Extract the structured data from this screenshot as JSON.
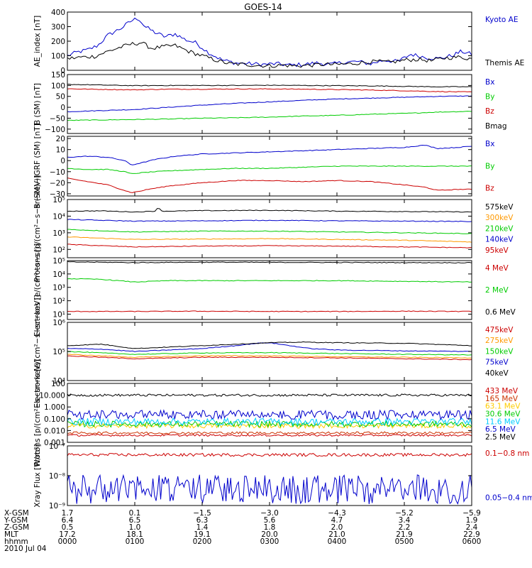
{
  "chart_data": {
    "type": "line",
    "title": "GOES-14",
    "x_range_hours": [
      0,
      6
    ],
    "panels": [
      {
        "name": "ae",
        "ylabel": "AE_index [nT]",
        "scale": "linear",
        "ylim": [
          0,
          400
        ],
        "ticks": [
          0,
          100,
          200,
          300,
          400
        ],
        "tick_labels": [
          "0",
          "100",
          "200",
          "300",
          "400"
        ],
        "series": [
          {
            "name": "Kyoto AE",
            "color": "#0000cc",
            "x": [
              0,
              0.15,
              0.3,
              0.45,
              0.6,
              0.8,
              0.95,
              1.05,
              1.15,
              1.3,
              1.45,
              1.6,
              1.75,
              1.9,
              2.1,
              2.3,
              2.5,
              2.7,
              2.9,
              3.1,
              3.3,
              3.5,
              3.7,
              3.9,
              4.1,
              4.3,
              4.5,
              4.7,
              4.9,
              5.1,
              5.3,
              5.5,
              5.7,
              5.85,
              6.0
            ],
            "y": [
              100,
              125,
              140,
              170,
              240,
              290,
              340,
              360,
              300,
              260,
              230,
              250,
              210,
              190,
              120,
              70,
              50,
              45,
              40,
              45,
              35,
              40,
              50,
              40,
              55,
              60,
              45,
              70,
              60,
              110,
              90,
              80,
              100,
              130,
              110
            ]
          },
          {
            "name": "Themis AE",
            "color": "#000000",
            "x": [
              0,
              0.2,
              0.4,
              0.6,
              0.8,
              0.95,
              1.1,
              1.25,
              1.4,
              1.6,
              1.8,
              2.0,
              2.2,
              2.4,
              2.6,
              2.8,
              3.0,
              3.2,
              3.4,
              3.6,
              3.8,
              4.0,
              4.2,
              4.4,
              4.6,
              4.8,
              5.0,
              5.2,
              5.4,
              5.6,
              5.8,
              6.0
            ],
            "y": [
              80,
              90,
              95,
              130,
              160,
              180,
              190,
              150,
              160,
              170,
              130,
              100,
              70,
              45,
              40,
              35,
              30,
              35,
              30,
              35,
              40,
              40,
              45,
              55,
              60,
              55,
              70,
              75,
              65,
              85,
              90,
              80
            ]
          }
        ]
      },
      {
        "name": "bsm",
        "ylabel": "B (SM) [nT]",
        "scale": "linear",
        "ylim": [
          -120,
          150
        ],
        "ticks": [
          -100,
          -50,
          0,
          50,
          100,
          150
        ],
        "tick_labels": [
          "−100",
          "−50",
          "0",
          "50",
          "100",
          "150"
        ],
        "series": [
          {
            "name": "Bx",
            "color": "#0000cc",
            "x": [
              0,
              0.5,
              1.0,
              1.5,
              2.0,
              2.5,
              3.0,
              3.5,
              4.0,
              4.5,
              5.0,
              5.5,
              6.0
            ],
            "y": [
              -20,
              -15,
              -10,
              0,
              10,
              18,
              25,
              32,
              38,
              42,
              46,
              50,
              52
            ]
          },
          {
            "name": "By",
            "color": "#00cc00",
            "x": [
              0,
              0.5,
              1.0,
              1.5,
              2.0,
              2.5,
              3.0,
              3.5,
              4.0,
              4.5,
              5.0,
              5.5,
              6.0
            ],
            "y": [
              -60,
              -58,
              -56,
              -54,
              -50,
              -48,
              -45,
              -40,
              -37,
              -32,
              -28,
              -22,
              -18
            ]
          },
          {
            "name": "Bz",
            "color": "#cc0000",
            "x": [
              0,
              0.5,
              1.0,
              1.5,
              2.0,
              2.5,
              3.0,
              3.5,
              4.0,
              4.5,
              5.0,
              5.5,
              6.0
            ],
            "y": [
              85,
              82,
              80,
              83,
              83,
              84,
              84,
              83,
              81,
              79,
              76,
              72,
              70
            ]
          },
          {
            "name": "Bmag",
            "color": "#000000",
            "x": [
              0,
              0.5,
              1.0,
              1.5,
              2.0,
              2.5,
              3.0,
              3.5,
              4.0,
              4.5,
              5.0,
              5.5,
              6.0
            ],
            "y": [
              105,
              102,
              99,
              100,
              100,
              100,
              101,
              100,
              99,
              98,
              96,
              94,
              94
            ]
          }
        ]
      },
      {
        "name": "bigrf",
        "ylabel": "B (SM)−IGRF (SM) [nT]",
        "scale": "linear",
        "ylim": [
          -32,
          22
        ],
        "ticks": [
          -30,
          -20,
          -10,
          0,
          10,
          20
        ],
        "tick_labels": [
          "−30",
          "−20",
          "−10",
          "0",
          "10",
          "20"
        ],
        "series": [
          {
            "name": "Bx",
            "color": "#0000cc",
            "x": [
              0,
              0.3,
              0.6,
              0.85,
              0.95,
              1.1,
              1.3,
              1.6,
              2.0,
              2.5,
              3.0,
              3.5,
              4.0,
              4.5,
              5.0,
              5.3,
              5.5,
              5.8,
              6.0
            ],
            "y": [
              3,
              4,
              3,
              0,
              -4,
              -2,
              1,
              4,
              6,
              7,
              8,
              9,
              10,
              11,
              12,
              14,
              11,
              12,
              13
            ]
          },
          {
            "name": "By",
            "color": "#00cc00",
            "x": [
              0,
              0.3,
              0.6,
              0.85,
              0.95,
              1.1,
              1.3,
              1.6,
              2.0,
              2.5,
              3.0,
              3.5,
              4.0,
              4.5,
              5.0,
              5.5,
              6.0
            ],
            "y": [
              -7,
              -8,
              -8,
              -10,
              -12,
              -11,
              -10,
              -9,
              -8,
              -7,
              -7,
              -6,
              -5,
              -5,
              -5,
              -5,
              -5
            ]
          },
          {
            "name": "Bz",
            "color": "#cc0000",
            "x": [
              0,
              0.3,
              0.6,
              0.85,
              0.95,
              1.05,
              1.2,
              1.5,
              2.0,
              2.5,
              3.0,
              3.5,
              4.0,
              4.5,
              5.0,
              5.3,
              5.5,
              5.8,
              6.0
            ],
            "y": [
              -16,
              -19,
              -22,
              -27,
              -29,
              -28,
              -26,
              -23,
              -20,
              -18,
              -18,
              -19,
              -18,
              -19,
              -22,
              -24,
              -27,
              -26,
              -26
            ]
          }
        ]
      },
      {
        "name": "protons_kev",
        "ylabel": "Protons [p/(cm²−s−sr−keV)]",
        "scale": "log",
        "ylim": [
          1.5,
          5
        ],
        "ticks": [
          2,
          3,
          4,
          5
        ],
        "tick_labels": [
          "10²",
          "10³",
          "10⁴",
          "10⁵"
        ],
        "series": [
          {
            "name": "575keV",
            "color": "#000000",
            "x": [
              0,
              0.5,
              1.0,
              1.3,
              1.35,
              1.4,
              1.5,
              2.0,
              3.0,
              4.0,
              5.0,
              6.0
            ],
            "y": [
              4.3,
              4.32,
              4.25,
              4.3,
              4.55,
              4.3,
              4.3,
              4.33,
              4.35,
              4.3,
              4.28,
              4.25
            ]
          },
          {
            "name": "300keV",
            "color": "#ff9900",
            "x": [
              0,
              1.0,
              2.0,
              3.0,
              4.0,
              5.0,
              6.0
            ],
            "y": [
              2.75,
              2.6,
              2.62,
              2.65,
              2.6,
              2.55,
              2.45
            ]
          },
          {
            "name": "210keV",
            "color": "#00cc00",
            "x": [
              0,
              1.0,
              2.0,
              3.0,
              4.0,
              5.0,
              6.0
            ],
            "y": [
              3.2,
              3.05,
              3.1,
              3.1,
              3.05,
              3.0,
              2.95
            ]
          },
          {
            "name": "140keV",
            "color": "#0000cc",
            "x": [
              0,
              1.0,
              2.0,
              3.0,
              4.0,
              5.0,
              6.0
            ],
            "y": [
              3.8,
              3.7,
              3.72,
              3.75,
              3.72,
              3.7,
              3.68
            ]
          },
          {
            "name": "95keV",
            "color": "#cc0000",
            "x": [
              0,
              1.0,
              2.0,
              3.0,
              4.0,
              5.0,
              6.0
            ],
            "y": [
              2.3,
              2.15,
              2.2,
              2.22,
              2.2,
              2.15,
              2.1
            ]
          }
        ]
      },
      {
        "name": "electrons_mev",
        "ylabel": "Electrons [e/(cm²−s−sr)]",
        "scale": "log",
        "ylim": [
          0.6,
          5
        ],
        "ticks": [
          1,
          2,
          3,
          4,
          5
        ],
        "tick_labels": [
          "10¹",
          "10²",
          "10³",
          "10⁴",
          "10⁵"
        ],
        "series": [
          {
            "name": "4 MeV",
            "color": "#cc0000",
            "x": [
              0,
              1.0,
              2.0,
              3.0,
              4.0,
              5.0,
              6.0
            ],
            "y": [
              1.2,
              1.2,
              1.22,
              1.2,
              1.2,
              1.22,
              1.2
            ]
          },
          {
            "name": "2 MeV",
            "color": "#00cc00",
            "x": [
              0,
              0.5,
              1.0,
              1.5,
              2.0,
              3.0,
              4.0,
              5.0,
              6.0
            ],
            "y": [
              3.65,
              3.6,
              3.4,
              3.5,
              3.5,
              3.5,
              3.5,
              3.45,
              3.4
            ]
          },
          {
            "name": "0.6 MeV",
            "color": "#000000",
            "x": [
              0,
              1.0,
              2.0,
              3.0,
              4.0,
              5.0,
              6.0
            ],
            "y": [
              4.9,
              4.85,
              4.88,
              4.87,
              4.86,
              4.85,
              4.84
            ]
          }
        ]
      },
      {
        "name": "electrons_kev",
        "ylabel": "Electrons [e/(cm²−s−sr−keV)]",
        "scale": "log",
        "ylim": [
          4,
          6
        ],
        "ticks": [
          4,
          5,
          6
        ],
        "tick_labels": [
          "10⁴",
          "10⁵",
          "10⁶"
        ],
        "series": [
          {
            "name": "475keV",
            "color": "#cc0000",
            "x": [
              0,
              1.0,
              2.0,
              3.0,
              4.0,
              5.0,
              6.0
            ],
            "y": [
              4.85,
              4.75,
              4.8,
              4.8,
              4.78,
              4.75,
              4.72
            ]
          },
          {
            "name": "275keV",
            "color": "#ff9900",
            "x": [
              0,
              1.0,
              2.0,
              3.0,
              4.0,
              5.0,
              6.0
            ],
            "y": [
              4.9,
              4.8,
              4.85,
              4.85,
              4.82,
              4.8,
              4.78
            ]
          },
          {
            "name": "150keV",
            "color": "#00cc00",
            "x": [
              0,
              1.0,
              2.0,
              3.0,
              4.0,
              5.0,
              6.0
            ],
            "y": [
              5.0,
              4.9,
              4.95,
              4.96,
              4.93,
              4.9,
              4.88
            ]
          },
          {
            "name": "75keV",
            "color": "#0000cc",
            "x": [
              0,
              0.5,
              1.0,
              1.5,
              2.0,
              2.5,
              2.8,
              3.0,
              3.3,
              3.6,
              4.0,
              5.0,
              6.0
            ],
            "y": [
              5.1,
              5.08,
              5.0,
              5.05,
              5.1,
              5.2,
              5.28,
              5.3,
              5.2,
              5.1,
              5.05,
              5.02,
              5.0
            ]
          },
          {
            "name": "40keV",
            "color": "#000000",
            "x": [
              0,
              0.5,
              1.0,
              1.5,
              2.0,
              2.5,
              3.0,
              3.5,
              4.0,
              5.0,
              6.0
            ],
            "y": [
              5.2,
              5.25,
              5.1,
              5.15,
              5.2,
              5.25,
              5.3,
              5.32,
              5.3,
              5.28,
              5.2
            ]
          }
        ]
      },
      {
        "name": "protons_mev",
        "ylabel": "Protons [p/(cm²−s−sr−keV)]",
        "scale": "log",
        "ylim": [
          -3,
          2
        ],
        "ticks": [
          -3,
          -2,
          -1,
          0,
          1,
          2
        ],
        "tick_labels": [
          "0.001",
          "0.010",
          "0.100",
          "1.000",
          "10.000",
          "100"
        ],
        "series": [
          {
            "name": "433 MeV",
            "color": "#cc0000",
            "level": -2.4,
            "noise": 0.08
          },
          {
            "name": "165 MeV",
            "color": "#cc3300",
            "level": -2.2,
            "noise": 0.1
          },
          {
            "name": "63.1 MeV",
            "color": "#ffcc00",
            "level": -1.6,
            "noise": 0.2
          },
          {
            "name": "30.6 MeV",
            "color": "#00cc00",
            "level": -1.45,
            "noise": 0.25
          },
          {
            "name": "11.6 MeV",
            "color": "#00ccff",
            "level": -1.25,
            "noise": 0.3
          },
          {
            "name": "6.5 MeV",
            "color": "#0000cc",
            "level": -1.05,
            "noise": 0.35
          },
          {
            "name": "2.5 MeV",
            "color": "#000000",
            "level": 1.0,
            "noise": 0.1
          }
        ]
      },
      {
        "name": "xray",
        "ylabel": "Xray Flux [W/m²]",
        "scale": "log",
        "ylim": [
          -9,
          -7
        ],
        "ticks": [
          -9,
          -8,
          -7
        ],
        "tick_labels": [
          "10⁻⁹",
          "10⁻⁸",
          "10⁻⁷"
        ],
        "series": [
          {
            "name": "0.1−0.8 nm",
            "color": "#cc0000",
            "level": -7.3,
            "noise": 0.05
          },
          {
            "name": "0.05−0.4 nm",
            "color": "#0000cc",
            "level": -8.95,
            "noise": 0.45
          }
        ]
      }
    ],
    "x_footer": {
      "rows": [
        {
          "label": "X-GSM",
          "values": [
            "1.7",
            "0.1",
            "−1.5",
            "−3.0",
            "−4.3",
            "−5.2",
            "−5.9"
          ]
        },
        {
          "label": "Y-GSM",
          "values": [
            "6.4",
            "6.5",
            "6.3",
            "5.6",
            "4.7",
            "3.4",
            "1.9"
          ]
        },
        {
          "label": "Z-GSM",
          "values": [
            "0.5",
            "1.0",
            "1.4",
            "1.8",
            "2.0",
            "2.2",
            "2.4"
          ]
        },
        {
          "label": "MLT",
          "values": [
            "17.2",
            "18.1",
            "19.1",
            "20.0",
            "21.0",
            "21.9",
            "22.9"
          ]
        },
        {
          "label": "hhmm",
          "values": [
            "0000",
            "0100",
            "0200",
            "0300",
            "0400",
            "0500",
            "0600"
          ]
        }
      ],
      "date": "2010 Jul 04"
    }
  }
}
